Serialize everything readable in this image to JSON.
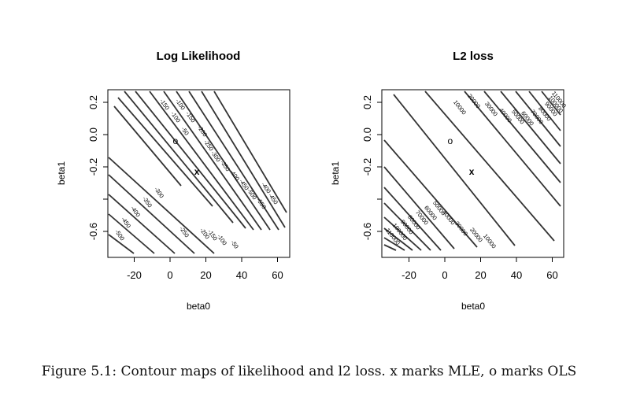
{
  "chart_data": [
    {
      "type": "contour",
      "title": "Log Likelihood",
      "xlabel": "beta0",
      "ylabel": "beta1",
      "xticks": [
        "-20",
        "0",
        "20",
        "40",
        "60"
      ],
      "yticks": [
        "0.2",
        "0.0",
        "-0.2",
        "-0.6"
      ],
      "xlim": [
        -35,
        65
      ],
      "ylim": [
        -0.75,
        0.28
      ],
      "contour_labels_upper": [
        "-150",
        "-100",
        "-50",
        "-100",
        "-150",
        "-200",
        "-250",
        "-300",
        "-350",
        "-400",
        "-450",
        "-500",
        "-550"
      ],
      "contour_labels_lower": [
        "-500",
        "-450",
        "-400",
        "-350",
        "-300",
        "-250",
        "-200",
        "-150",
        "-100",
        "-50"
      ],
      "contour_labels_side": [
        "-400",
        "-450"
      ],
      "mle": {
        "x": 15,
        "y": -0.23,
        "symbol": "x"
      },
      "ols": {
        "x": 3,
        "y": -0.04,
        "symbol": "o"
      }
    },
    {
      "type": "contour",
      "title": "L2 loss",
      "xlabel": "beta0",
      "ylabel": "beta1",
      "xticks": [
        "-20",
        "0",
        "20",
        "40",
        "60"
      ],
      "yticks": [
        "0.2",
        "0.0",
        "-0.2",
        "-0.6"
      ],
      "xlim": [
        -35,
        65
      ],
      "ylim": [
        -0.75,
        0.28
      ],
      "contour_labels_upper": [
        "10000",
        "20000",
        "30000",
        "40000",
        "50000",
        "60000",
        "70000",
        "80000",
        "90000",
        "100000",
        "110000"
      ],
      "contour_labels_lower": [
        "110000",
        "100000",
        "90000",
        "80000",
        "70000",
        "60000",
        "50000",
        "40000",
        "30000",
        "20000",
        "10000"
      ],
      "mle": {
        "x": 15,
        "y": -0.23,
        "symbol": "x"
      },
      "ols": {
        "x": 3,
        "y": -0.04,
        "symbol": "o"
      }
    }
  ],
  "caption": "Figure 5.1: Contour maps of likelihood and l2 loss. x marks MLE, o marks OLS"
}
